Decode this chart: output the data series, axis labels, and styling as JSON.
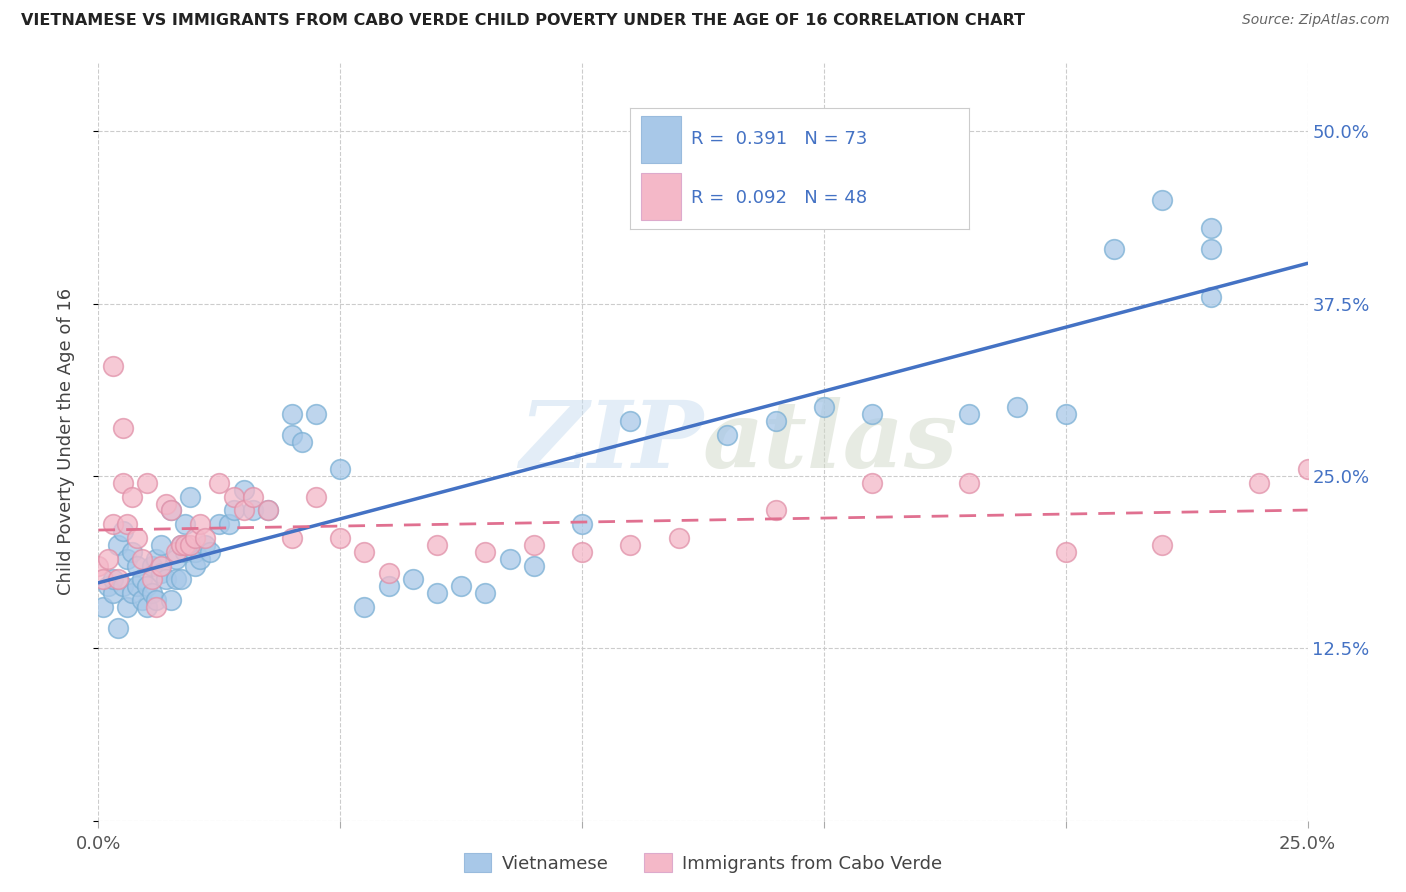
{
  "title": "VIETNAMESE VS IMMIGRANTS FROM CABO VERDE CHILD POVERTY UNDER THE AGE OF 16 CORRELATION CHART",
  "source": "Source: ZipAtlas.com",
  "ylabel": "Child Poverty Under the Age of 16",
  "xlim": [
    0.0,
    0.25
  ],
  "ylim": [
    0.0,
    0.55
  ],
  "xticks": [
    0.0,
    0.05,
    0.1,
    0.15,
    0.2,
    0.25
  ],
  "xticklabels": [
    "0.0%",
    "",
    "",
    "",
    "",
    "25.0%"
  ],
  "ytick_vals": [
    0.0,
    0.125,
    0.25,
    0.375,
    0.5
  ],
  "ytick_right_labels": [
    "",
    "12.5%",
    "25.0%",
    "37.5%",
    "50.0%"
  ],
  "legend_R1": "0.391",
  "legend_N1": "73",
  "legend_R2": "0.092",
  "legend_N2": "48",
  "color_vietnamese": "#a8c8e8",
  "color_cabo_verde": "#f4b8c8",
  "color_line_viet": "#4472c4",
  "color_line_cabo": "#e07090",
  "watermark": "ZIPatlas",
  "viet_x": [
    0.001,
    0.002,
    0.003,
    0.003,
    0.004,
    0.004,
    0.005,
    0.005,
    0.006,
    0.006,
    0.007,
    0.007,
    0.008,
    0.008,
    0.009,
    0.009,
    0.01,
    0.01,
    0.011,
    0.011,
    0.012,
    0.012,
    0.013,
    0.013,
    0.014,
    0.015,
    0.015,
    0.016,
    0.016,
    0.017,
    0.017,
    0.018,
    0.018,
    0.019,
    0.02,
    0.02,
    0.021,
    0.022,
    0.023,
    0.025,
    0.027,
    0.028,
    0.03,
    0.032,
    0.035,
    0.04,
    0.04,
    0.042,
    0.045,
    0.05,
    0.055,
    0.06,
    0.065,
    0.07,
    0.075,
    0.08,
    0.085,
    0.09,
    0.1,
    0.11,
    0.12,
    0.13,
    0.14,
    0.15,
    0.16,
    0.18,
    0.19,
    0.2,
    0.21,
    0.22,
    0.23,
    0.23,
    0.23
  ],
  "viet_y": [
    0.155,
    0.17,
    0.165,
    0.175,
    0.14,
    0.2,
    0.17,
    0.21,
    0.155,
    0.19,
    0.165,
    0.195,
    0.17,
    0.185,
    0.16,
    0.175,
    0.155,
    0.17,
    0.165,
    0.185,
    0.16,
    0.19,
    0.18,
    0.2,
    0.175,
    0.16,
    0.225,
    0.175,
    0.19,
    0.175,
    0.2,
    0.195,
    0.215,
    0.235,
    0.185,
    0.195,
    0.19,
    0.2,
    0.195,
    0.215,
    0.215,
    0.225,
    0.24,
    0.225,
    0.225,
    0.28,
    0.295,
    0.275,
    0.295,
    0.255,
    0.155,
    0.17,
    0.175,
    0.165,
    0.17,
    0.165,
    0.19,
    0.185,
    0.215,
    0.29,
    0.46,
    0.28,
    0.29,
    0.3,
    0.295,
    0.295,
    0.3,
    0.295,
    0.415,
    0.45,
    0.415,
    0.38,
    0.43
  ],
  "cabo_x": [
    0.0,
    0.001,
    0.002,
    0.003,
    0.003,
    0.004,
    0.005,
    0.005,
    0.006,
    0.007,
    0.008,
    0.009,
    0.01,
    0.011,
    0.012,
    0.013,
    0.014,
    0.015,
    0.016,
    0.017,
    0.018,
    0.019,
    0.02,
    0.021,
    0.022,
    0.025,
    0.028,
    0.03,
    0.032,
    0.035,
    0.04,
    0.045,
    0.05,
    0.055,
    0.06,
    0.07,
    0.08,
    0.09,
    0.1,
    0.11,
    0.12,
    0.14,
    0.16,
    0.18,
    0.2,
    0.22,
    0.24,
    0.25
  ],
  "cabo_y": [
    0.185,
    0.175,
    0.19,
    0.215,
    0.33,
    0.175,
    0.245,
    0.285,
    0.215,
    0.235,
    0.205,
    0.19,
    0.245,
    0.175,
    0.155,
    0.185,
    0.23,
    0.225,
    0.195,
    0.2,
    0.2,
    0.2,
    0.205,
    0.215,
    0.205,
    0.245,
    0.235,
    0.225,
    0.235,
    0.225,
    0.205,
    0.235,
    0.205,
    0.195,
    0.18,
    0.2,
    0.195,
    0.2,
    0.195,
    0.2,
    0.205,
    0.225,
    0.245,
    0.245,
    0.195,
    0.2,
    0.245,
    0.255
  ]
}
